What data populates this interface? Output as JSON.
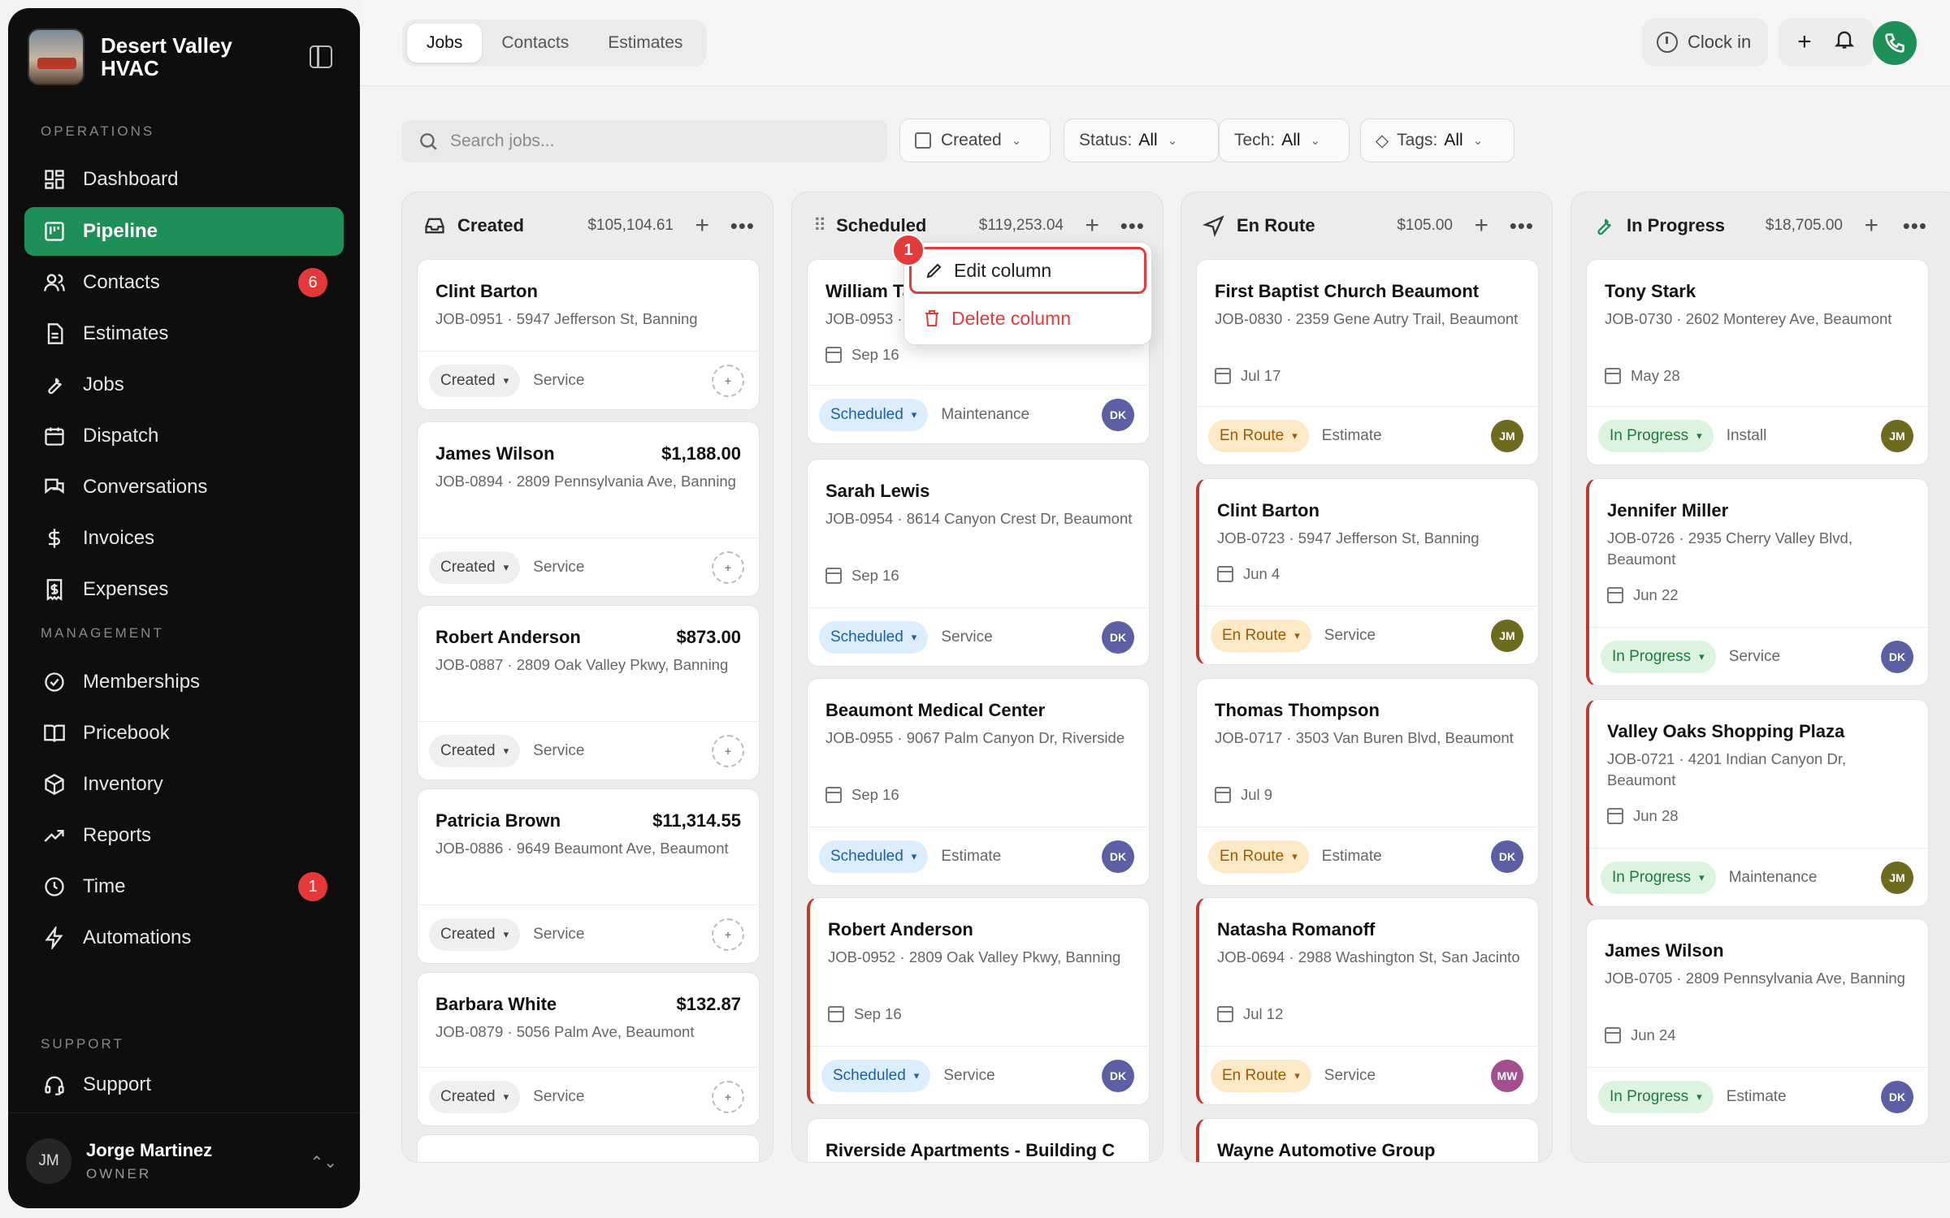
{
  "brand": {
    "name": "Desert Valley HVAC"
  },
  "sidebar": {
    "sections": {
      "operations": "OPERATIONS",
      "management": "MANAGEMENT",
      "support": "SUPPORT"
    },
    "items": [
      {
        "label": "Dashboard",
        "icon": "dashboard-icon"
      },
      {
        "label": "Pipeline",
        "icon": "pipeline-icon",
        "active": true
      },
      {
        "label": "Contacts",
        "icon": "contacts-icon",
        "badge": "6"
      },
      {
        "label": "Estimates",
        "icon": "estimates-icon"
      },
      {
        "label": "Jobs",
        "icon": "wrench-icon"
      },
      {
        "label": "Dispatch",
        "icon": "calendar-icon"
      },
      {
        "label": "Conversations",
        "icon": "chat-icon"
      },
      {
        "label": "Invoices",
        "icon": "dollar-icon"
      },
      {
        "label": "Expenses",
        "icon": "receipt-icon"
      },
      {
        "label": "Memberships",
        "icon": "badge-check-icon"
      },
      {
        "label": "Pricebook",
        "icon": "book-icon"
      },
      {
        "label": "Inventory",
        "icon": "box-icon"
      },
      {
        "label": "Reports",
        "icon": "trend-icon"
      },
      {
        "label": "Time",
        "icon": "clock-icon",
        "badge": "1"
      },
      {
        "label": "Automations",
        "icon": "bolt-icon"
      },
      {
        "label": "Support",
        "icon": "headset-icon"
      }
    ],
    "user": {
      "initials": "JM",
      "name": "Jorge Martinez",
      "role": "OWNER"
    }
  },
  "topbar": {
    "tabs": [
      "Jobs",
      "Contacts",
      "Estimates"
    ],
    "active_tab": "Jobs",
    "clock_in": "Clock in"
  },
  "filters": {
    "search_placeholder": "Search jobs...",
    "created": "Created",
    "status_label": "Status:",
    "status_value": "All",
    "tech_label": "Tech:",
    "tech_value": "All",
    "tags_label": "Tags:",
    "tags_value": "All"
  },
  "context_menu": {
    "step": "1",
    "edit": "Edit column",
    "delete": "Delete column"
  },
  "columns": [
    {
      "title": "Created",
      "total": "$105,104.61",
      "cards": [
        {
          "name": "Clint Barton",
          "amount": "",
          "info": "JOB-0951 · 5947 Jefferson St, Banning",
          "date": "",
          "status": "Created",
          "type": "Service",
          "tech": ""
        },
        {
          "name": "James Wilson",
          "amount": "$1,188.00",
          "info": "JOB-0894 · 2809 Pennsylvania Ave, Banning",
          "date": "",
          "status": "Created",
          "type": "Service",
          "tech": ""
        },
        {
          "name": "Robert Anderson",
          "amount": "$873.00",
          "info": "JOB-0887 · 2809 Oak Valley Pkwy, Banning",
          "date": "",
          "status": "Created",
          "type": "Service",
          "tech": ""
        },
        {
          "name": "Patricia Brown",
          "amount": "$11,314.55",
          "info": "JOB-0886 · 9649 Beaumont Ave, Beaumont",
          "date": "",
          "status": "Created",
          "type": "Service",
          "tech": ""
        },
        {
          "name": "Barbara White",
          "amount": "$132.87",
          "info": "JOB-0879 · 5056 Palm Ave, Beaumont",
          "date": "",
          "status": "Created",
          "type": "Service",
          "tech": ""
        }
      ]
    },
    {
      "title": "Scheduled",
      "total": "$119,253.04",
      "cards": [
        {
          "name": "William Ta",
          "amount": "",
          "info": "JOB-0953 ·",
          "date": "Sep 16",
          "status": "Scheduled",
          "type": "Maintenance",
          "tech": "DK"
        },
        {
          "name": "Sarah Lewis",
          "amount": "",
          "info": "JOB-0954 · 8614 Canyon Crest Dr, Beaumont",
          "date": "Sep 16",
          "status": "Scheduled",
          "type": "Service",
          "tech": "DK"
        },
        {
          "name": "Beaumont Medical Center",
          "amount": "",
          "info": "JOB-0955 · 9067 Palm Canyon Dr, Riverside",
          "date": "Sep 16",
          "status": "Scheduled",
          "type": "Estimate",
          "tech": "DK"
        },
        {
          "name": "Robert Anderson",
          "amount": "",
          "info": "JOB-0952 · 2809 Oak Valley Pkwy, Banning",
          "date": "Sep 16",
          "status": "Scheduled",
          "type": "Service",
          "tech": "DK"
        },
        {
          "name": "Riverside Apartments - Building C",
          "amount": "",
          "info": "",
          "date": "",
          "status": "",
          "type": "",
          "tech": ""
        }
      ]
    },
    {
      "title": "En Route",
      "total": "$105.00",
      "cards": [
        {
          "name": "First Baptist Church Beaumont",
          "amount": "",
          "info": "JOB-0830 · 2359 Gene Autry Trail, Beaumont",
          "date": "Jul 17",
          "status": "En Route",
          "type": "Estimate",
          "tech": "JM"
        },
        {
          "name": "Clint Barton",
          "amount": "",
          "info": "JOB-0723 · 5947 Jefferson St, Banning",
          "date": "Jun 4",
          "status": "En Route",
          "type": "Service",
          "tech": "JM"
        },
        {
          "name": "Thomas Thompson",
          "amount": "",
          "info": "JOB-0717 · 3503 Van Buren Blvd, Beaumont",
          "date": "Jul 9",
          "status": "En Route",
          "type": "Estimate",
          "tech": "DK"
        },
        {
          "name": "Natasha Romanoff",
          "amount": "",
          "info": "JOB-0694 · 2988 Washington St, San Jacinto",
          "date": "Jul 12",
          "status": "En Route",
          "type": "Service",
          "tech": "MW"
        },
        {
          "name": "Wayne Automotive Group",
          "amount": "",
          "info": "",
          "date": "",
          "status": "",
          "type": "",
          "tech": ""
        }
      ]
    },
    {
      "title": "In Progress",
      "total": "$18,705.00",
      "cards": [
        {
          "name": "Tony Stark",
          "amount": "",
          "info": "JOB-0730 · 2602 Monterey Ave, Beaumont",
          "date": "May 28",
          "status": "In Progress",
          "type": "Install",
          "tech": "JM"
        },
        {
          "name": "Jennifer Miller",
          "amount": "",
          "info": "JOB-0726 · 2935 Cherry Valley Blvd, Beaumont",
          "date": "Jun 22",
          "status": "In Progress",
          "type": "Service",
          "tech": "DK"
        },
        {
          "name": "Valley Oaks Shopping Plaza",
          "amount": "",
          "info": "JOB-0721 · 4201 Indian Canyon Dr, Beaumont",
          "date": "Jun 28",
          "status": "In Progress",
          "type": "Maintenance",
          "tech": "JM"
        },
        {
          "name": "James Wilson",
          "amount": "",
          "info": "JOB-0705 · 2809 Pennsylvania Ave, Banning",
          "date": "Jun 24",
          "status": "In Progress",
          "type": "Estimate",
          "tech": "DK"
        }
      ]
    }
  ]
}
